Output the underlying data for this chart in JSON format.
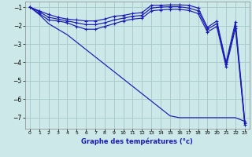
{
  "title": "Graphe des températures (°c)",
  "background_color": "#cce8e8",
  "grid_color": "#aacccc",
  "line_color": "#1a1ab4",
  "xlim": [
    -0.5,
    23.5
  ],
  "ylim": [
    -7.6,
    -0.7
  ],
  "yticks": [
    -7,
    -6,
    -5,
    -4,
    -3,
    -2,
    -1
  ],
  "xticks": [
    0,
    1,
    2,
    3,
    4,
    5,
    6,
    7,
    8,
    9,
    10,
    11,
    12,
    13,
    14,
    15,
    16,
    17,
    18,
    19,
    20,
    21,
    22,
    23
  ],
  "line1_y": [
    -1.0,
    -1.2,
    -1.4,
    -1.55,
    -1.65,
    -1.7,
    -1.75,
    -1.75,
    -1.65,
    -1.5,
    -1.45,
    -1.35,
    -1.3,
    -0.9,
    -0.9,
    -0.88,
    -0.88,
    -0.9,
    -1.05,
    -2.1,
    -1.75,
    -4.0,
    -1.8,
    -7.2
  ],
  "line2_y": [
    -1.0,
    -1.25,
    -1.55,
    -1.65,
    -1.75,
    -1.85,
    -1.95,
    -1.95,
    -1.85,
    -1.7,
    -1.6,
    -1.5,
    -1.45,
    -1.05,
    -1.0,
    -0.98,
    -0.98,
    -1.05,
    -1.2,
    -2.2,
    -1.9,
    -4.1,
    -2.0,
    -7.3
  ],
  "line3_y": [
    -1.0,
    -1.35,
    -1.7,
    -1.75,
    -1.85,
    -2.05,
    -2.2,
    -2.2,
    -2.05,
    -1.9,
    -1.75,
    -1.65,
    -1.6,
    -1.2,
    -1.15,
    -1.12,
    -1.12,
    -1.18,
    -1.35,
    -2.35,
    -2.05,
    -4.25,
    -2.15,
    -7.4
  ],
  "line4_y": [
    -1.0,
    -1.4,
    -1.9,
    -2.2,
    -2.5,
    -2.9,
    -3.3,
    -3.7,
    -4.1,
    -4.5,
    -4.9,
    -5.3,
    -5.7,
    -6.1,
    -6.5,
    -6.9,
    -7.0,
    -7.0,
    -7.0,
    -7.0,
    -7.0,
    -7.0,
    -7.0,
    -7.2
  ]
}
